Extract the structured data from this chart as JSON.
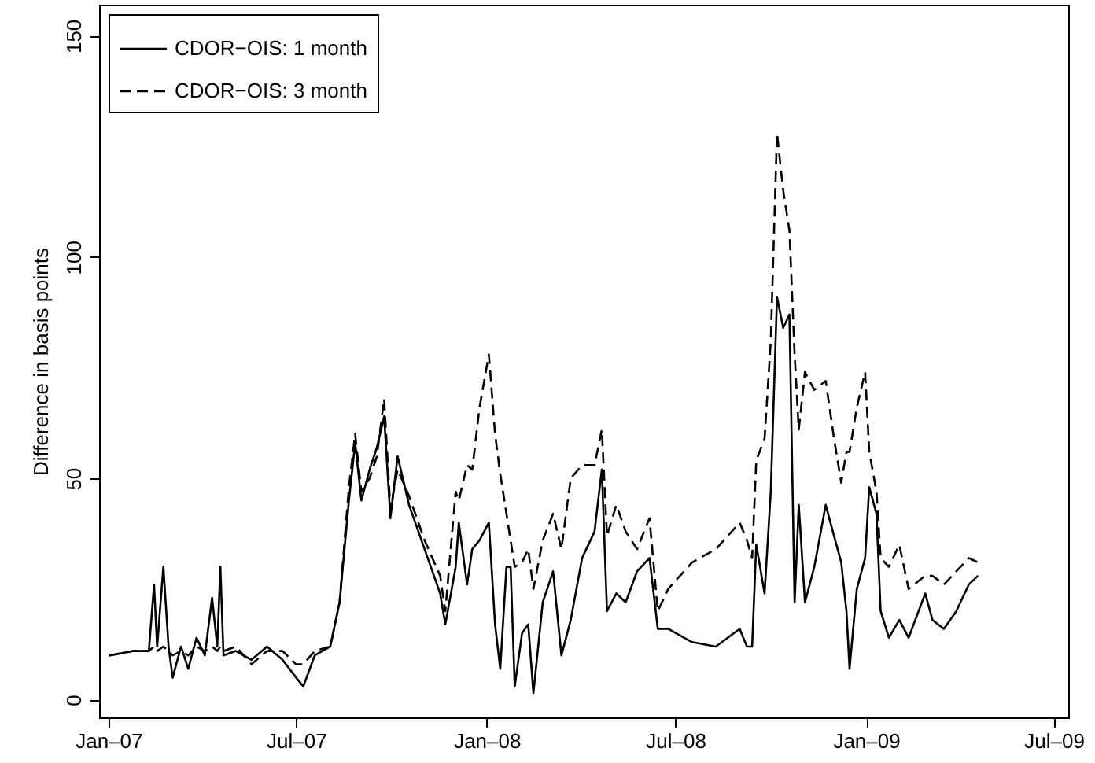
{
  "chart_data": {
    "type": "line",
    "ylabel": "Difference in basis points",
    "x": [
      "2007-01-02",
      "2007-01-25",
      "2007-02-09",
      "2007-02-14",
      "2007-02-17",
      "2007-02-23",
      "2007-02-28",
      "2007-03-04",
      "2007-03-12",
      "2007-03-19",
      "2007-03-27",
      "2007-04-04",
      "2007-04-11",
      "2007-04-16",
      "2007-04-19",
      "2007-04-22",
      "2007-05-04",
      "2007-05-19",
      "2007-06-03",
      "2007-06-18",
      "2007-07-01",
      "2007-07-08",
      "2007-07-19",
      "2007-08-03",
      "2007-08-12",
      "2007-08-21",
      "2007-08-27",
      "2007-09-02",
      "2007-09-10",
      "2007-09-17",
      "2007-09-24",
      "2007-09-30",
      "2007-10-07",
      "2007-10-18",
      "2007-11-02",
      "2007-11-17",
      "2007-11-22",
      "2007-12-02",
      "2007-12-05",
      "2007-12-13",
      "2007-12-18",
      "2007-12-25",
      "2008-01-03",
      "2008-01-09",
      "2008-01-14",
      "2008-01-20",
      "2008-01-24",
      "2008-01-28",
      "2008-02-04",
      "2008-02-10",
      "2008-02-15",
      "2008-02-24",
      "2008-03-05",
      "2008-03-13",
      "2008-03-22",
      "2008-04-02",
      "2008-04-14",
      "2008-04-21",
      "2008-04-26",
      "2008-05-05",
      "2008-05-14",
      "2008-05-25",
      "2008-06-06",
      "2008-06-14",
      "2008-06-24",
      "2008-07-17",
      "2008-08-09",
      "2008-09-01",
      "2008-09-08",
      "2008-09-13",
      "2008-09-17",
      "2008-09-25",
      "2008-10-01",
      "2008-10-07",
      "2008-10-13",
      "2008-10-19",
      "2008-10-24",
      "2008-10-28",
      "2008-11-03",
      "2008-11-12",
      "2008-11-23",
      "2008-12-01",
      "2008-12-08",
      "2008-12-13",
      "2008-12-16",
      "2008-12-23",
      "2008-12-31",
      "2009-01-04",
      "2009-01-11",
      "2009-01-15",
      "2009-01-23",
      "2009-02-02",
      "2009-02-11",
      "2009-02-27",
      "2009-03-06",
      "2009-03-17",
      "2009-03-29",
      "2009-04-10",
      "2009-04-19"
    ],
    "series": [
      {
        "name": "CDOR−OIS: 1 month",
        "color": "#000000",
        "line_style": "solid",
        "values": [
          10,
          11,
          11,
          26,
          12,
          30,
          12,
          5,
          12,
          7,
          14,
          10,
          23,
          12,
          30,
          10,
          11,
          9,
          12,
          9,
          5,
          3,
          10,
          12,
          22,
          45,
          58,
          45,
          52,
          57,
          64,
          41,
          55,
          44,
          34,
          24,
          17,
          30,
          40,
          26,
          34,
          36,
          40,
          17,
          7,
          30,
          30,
          3,
          15,
          17,
          1.5,
          22,
          29,
          10,
          18,
          32,
          38,
          52,
          20,
          24,
          22,
          29,
          32,
          16,
          16,
          13,
          12,
          16,
          12,
          12,
          35,
          24,
          47,
          91,
          84,
          87,
          22,
          44,
          22,
          30,
          44,
          37,
          31,
          20,
          7,
          25,
          32,
          48,
          42,
          20,
          14,
          18,
          14,
          24,
          18,
          16,
          20,
          26,
          28
        ]
      },
      {
        "name": "CDOR−OIS: 3 month",
        "color": "#000000",
        "line_style": "dashed",
        "values": [
          10,
          11,
          11,
          12,
          11,
          12,
          11,
          10,
          11,
          10,
          12,
          11,
          12,
          11,
          12,
          11,
          12,
          8,
          11,
          11,
          8,
          8,
          11,
          12,
          22,
          48,
          60,
          47,
          50,
          55,
          68,
          43,
          52,
          46,
          36,
          28,
          20,
          47,
          45,
          53,
          52,
          66,
          78,
          60,
          51,
          42,
          36,
          30,
          31,
          34,
          25,
          36,
          42,
          34,
          50,
          53,
          53,
          61,
          37,
          44,
          38,
          34,
          41,
          20,
          25,
          31,
          34,
          40,
          36,
          32,
          54,
          59,
          81,
          128,
          115,
          106,
          78,
          61,
          74,
          70,
          72,
          59,
          49,
          56,
          56,
          66,
          74,
          56,
          47,
          32,
          30,
          35,
          25,
          28,
          28,
          26,
          29,
          32,
          31
        ]
      }
    ],
    "xlim": [
      "2006-12-23",
      "2009-07-15"
    ],
    "xticks": [
      {
        "value": "2007-01-01",
        "label": "Jan–07"
      },
      {
        "value": "2007-07-01",
        "label": "Jul–07"
      },
      {
        "value": "2008-01-01",
        "label": "Jan–08"
      },
      {
        "value": "2008-07-01",
        "label": "Jul–08"
      },
      {
        "value": "2009-01-01",
        "label": "Jan–09"
      },
      {
        "value": "2009-07-01",
        "label": "Jul–09"
      }
    ],
    "ylim": [
      -4,
      157
    ],
    "yticks": [
      0,
      50,
      100,
      150
    ],
    "grid": false,
    "legend": "top left",
    "marker": "none"
  }
}
